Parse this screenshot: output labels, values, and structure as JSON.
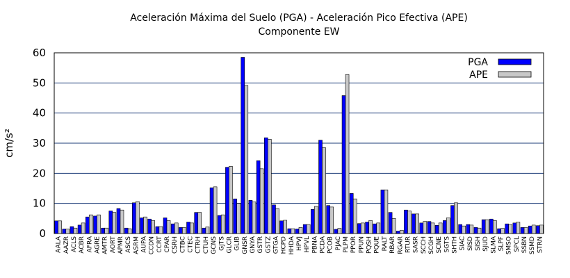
{
  "chart_data": {
    "type": "bar",
    "title": "Aceleración Máxima del Suelo (PGA) -  Aceleración Pico Efectiva (APE)",
    "subtitle": "Componente EW",
    "y_label": "cm/s²",
    "categories": [
      "AALA",
      "AAZR",
      "ACLS",
      "ACBR",
      "AFRA",
      "AGRE",
      "AMTR",
      "AORT",
      "APMR",
      "ASCS",
      "ASRM",
      "AUPA",
      "CCDN",
      "CCRT",
      "CPAR",
      "CSRH",
      "CTBC",
      "CTEC",
      "CTRH",
      "CTUH",
      "GCNS",
      "GJTS",
      "GLCR",
      "GLIB",
      "GNSR",
      "GNYA",
      "GSTR",
      "GSTZ",
      "GTGA",
      "HCPD",
      "HHDA",
      "HPVJ",
      "HPVL",
      "PBNA",
      "PCDA",
      "PCOB",
      "PJAC",
      "PLPM",
      "PPOR",
      "PPUN",
      "PQSH",
      "PQUE",
      "RALT",
      "RBAR",
      "RGAR",
      "RTUR",
      "SASR",
      "SCCH",
      "SCGH",
      "SCNE",
      "SGTS",
      "SHTH",
      "SIAC",
      "SISD",
      "SISH",
      "SJUD",
      "SLMA",
      "SLPF",
      "SMSO",
      "SPCL",
      "SSBN",
      "SSMD",
      "STRN"
    ],
    "series": [
      {
        "name": "PGA",
        "color": "#0000ff",
        "values": [
          4.2,
          1.5,
          2.3,
          2.8,
          5.5,
          5.8,
          1.8,
          7.5,
          8.3,
          1.8,
          10.2,
          5.2,
          4.8,
          2.3,
          5.2,
          3.2,
          2.0,
          3.8,
          7.0,
          1.8,
          15.2,
          6.0,
          22.0,
          11.5,
          58.5,
          11.0,
          24.2,
          31.8,
          9.5,
          4.2,
          1.6,
          1.5,
          3.0,
          8.0,
          31.0,
          9.3,
          1.4,
          45.8,
          13.3,
          3.3,
          3.8,
          3.2,
          14.5,
          7.0,
          0.8,
          7.8,
          6.5,
          3.5,
          4.0,
          2.7,
          4.3,
          9.3,
          3.0,
          3.0,
          2.0,
          4.6,
          4.8,
          1.6,
          3.2,
          3.5,
          2.0,
          2.5,
          2.6
        ]
      },
      {
        "name": "APE",
        "color": "#c8c8c8",
        "values": [
          4.2,
          1.5,
          1.8,
          3.5,
          6.2,
          6.2,
          1.8,
          7.0,
          7.8,
          1.6,
          10.6,
          5.5,
          4.3,
          2.3,
          4.3,
          3.5,
          2.0,
          3.5,
          7.0,
          2.2,
          15.5,
          6.2,
          22.3,
          10.0,
          49.2,
          10.5,
          21.5,
          31.3,
          8.3,
          4.4,
          1.6,
          2.0,
          3.0,
          9.0,
          28.5,
          8.8,
          1.7,
          52.8,
          11.5,
          3.5,
          4.3,
          3.5,
          14.5,
          5.0,
          1.1,
          7.5,
          6.5,
          4.0,
          3.5,
          3.5,
          5.2,
          10.2,
          2.5,
          2.8,
          1.8,
          4.6,
          4.3,
          1.7,
          3.0,
          3.8,
          2.0,
          2.8,
          2.8
        ]
      }
    ],
    "ylim": [
      0,
      60
    ],
    "yticks": [
      0,
      10,
      20,
      30,
      40,
      50,
      60
    ],
    "grid": true,
    "legend": "upper right"
  }
}
